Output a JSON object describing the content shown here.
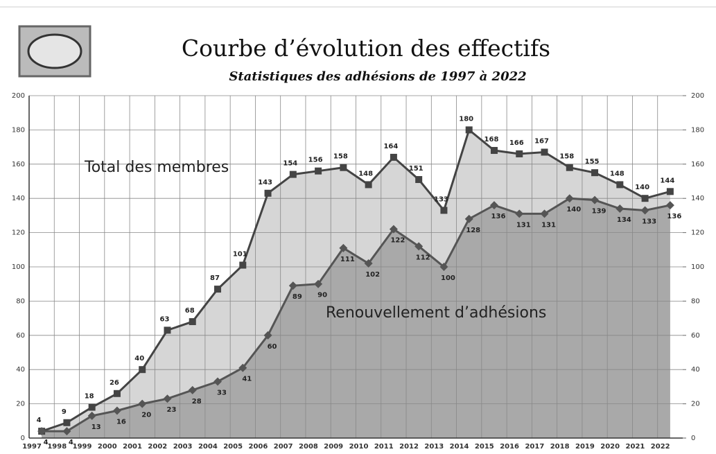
{
  "chart_data": {
    "type": "line",
    "title": "Courbe d’évolution des effectifs",
    "subtitle": "Statistiques des adhésions de 1997 à 2022",
    "categories": [
      "1997",
      "1998",
      "1999",
      "2000",
      "2001",
      "2002",
      "2003",
      "2004",
      "2005",
      "2006",
      "2007",
      "2008",
      "2009",
      "2010",
      "2011",
      "2012",
      "2013",
      "2014",
      "2015",
      "2016",
      "2017",
      "2018",
      "2019",
      "2020",
      "2021",
      "2022"
    ],
    "series": [
      {
        "name": "Total des membres",
        "color": "#444444",
        "fill": "#d6d6d6",
        "values": [
          4,
          9,
          18,
          26,
          40,
          63,
          68,
          87,
          101,
          143,
          154,
          156,
          158,
          148,
          164,
          151,
          133,
          180,
          168,
          166,
          167,
          158,
          155,
          148,
          140,
          144
        ]
      },
      {
        "name": "Renouvellement d’adhésions",
        "color": "#555555",
        "fill": "#a9a9a9",
        "values": [
          4,
          4,
          13,
          16,
          20,
          23,
          28,
          33,
          41,
          60,
          89,
          90,
          111,
          102,
          122,
          112,
          100,
          128,
          136,
          131,
          131,
          140,
          139,
          134,
          133,
          136
        ]
      }
    ],
    "ylim": [
      0,
      200
    ],
    "yticks": [
      0,
      20,
      40,
      60,
      80,
      100,
      120,
      140,
      160,
      180,
      200
    ],
    "y2lim": [
      0,
      200
    ],
    "y2ticks": [
      0,
      20,
      40,
      60,
      80,
      100,
      120,
      140,
      160,
      180,
      200
    ],
    "grid": true
  }
}
